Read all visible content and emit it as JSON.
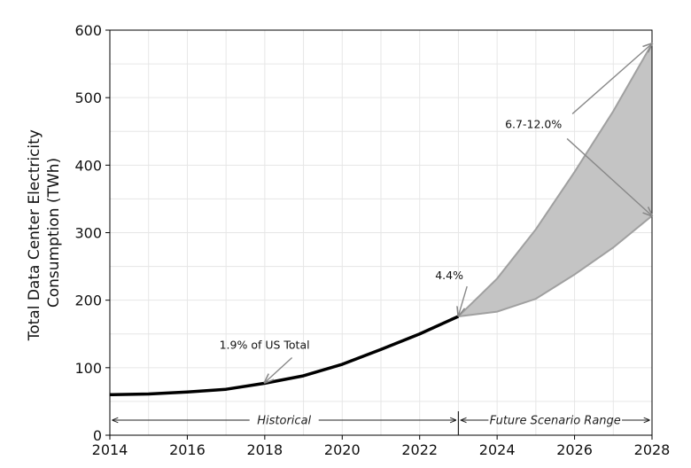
{
  "chart_data": {
    "type": "line",
    "ylabel_line1": "Total Data Center Electricity",
    "ylabel_line2": "Consumption (TWh)",
    "xlabel": "",
    "xlim": [
      2014,
      2028
    ],
    "ylim": [
      0,
      600
    ],
    "xticks": [
      2014,
      2016,
      2018,
      2020,
      2022,
      2024,
      2026,
      2028
    ],
    "yticks": [
      0,
      100,
      200,
      300,
      400,
      500,
      600
    ],
    "grid": true,
    "series": [
      {
        "x": [
          2014,
          2015,
          2016,
          2017,
          2018,
          2019,
          2020,
          2021,
          2022,
          2023
        ],
        "values": [
          60,
          61,
          64,
          68,
          77,
          88,
          105,
          127,
          150,
          176
        ],
        "color": "#000000"
      }
    ],
    "band": {
      "x": [
        2023,
        2024,
        2025,
        2026,
        2027,
        2028
      ],
      "upper": [
        176,
        232,
        305,
        390,
        480,
        580
      ],
      "lower": [
        176,
        183,
        202,
        238,
        278,
        325
      ],
      "fill": "#c4c4c4",
      "edge": "#a0a0a0"
    },
    "annotations": [
      {
        "text": "1.9% of US Total",
        "text_at": [
          2018.2,
          128
        ],
        "point_at": [
          2018,
          78
        ]
      },
      {
        "text": "4.4%",
        "text_at": [
          2022.4,
          231
        ],
        "point_at": [
          2023,
          177
        ]
      },
      {
        "text": "6.7-12.0%",
        "text_at": [
          2024.8,
          455
        ],
        "point_at": [
          2028,
          580
        ]
      },
      {
        "text": "6.7-12.0%",
        "text_at": [
          2024.8,
          455
        ],
        "point_at": [
          2028,
          325
        ],
        "hidden": true
      }
    ],
    "ranges": [
      {
        "label": "Historical",
        "from": 2014,
        "to": 2023
      },
      {
        "label": "Future Scenario Range",
        "from": 2023,
        "to": 2028
      }
    ]
  }
}
